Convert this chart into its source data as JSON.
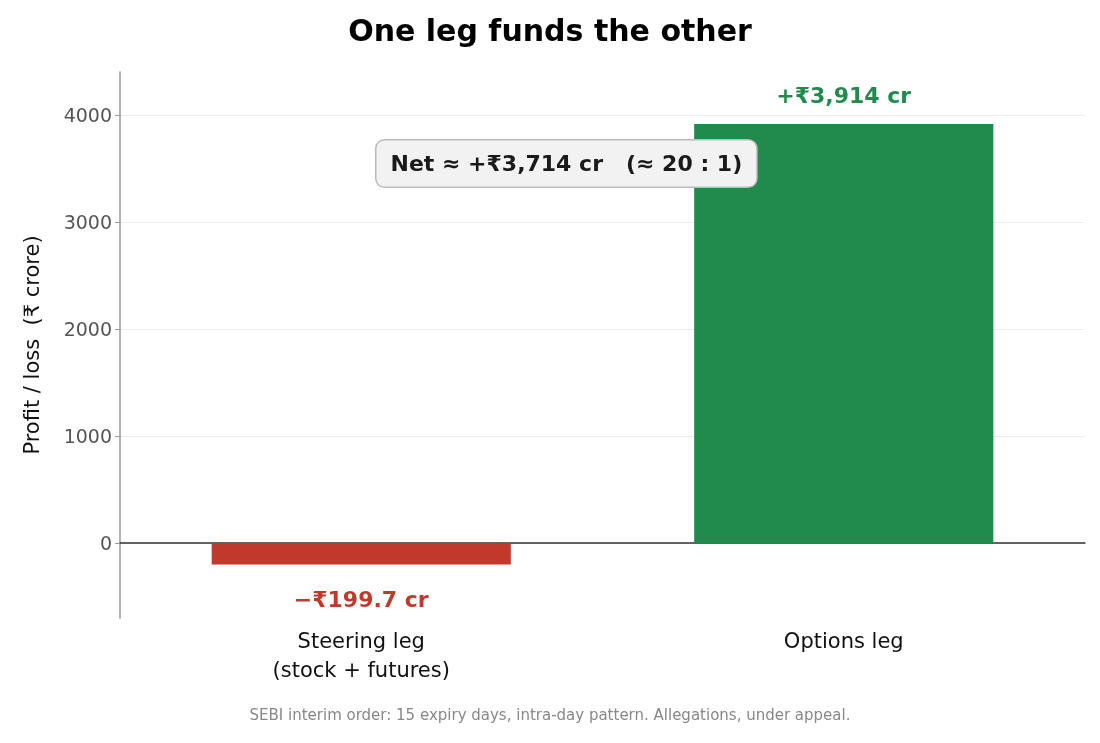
{
  "chart_data": {
    "type": "bar",
    "title": "One leg funds the other",
    "ylabel": "Profit / loss  (₹ crore)",
    "categories": [
      "Steering leg\n(stock + futures)",
      "Options leg"
    ],
    "values": [
      -199.7,
      3914
    ],
    "colors": [
      "#c0392b",
      "#218b4e"
    ],
    "value_labels": [
      "−₹199.7 cr",
      "+₹3,914 cr"
    ],
    "ylim": [
      -700,
      4400
    ],
    "yticks": [
      0,
      1000,
      2000,
      3000,
      4000
    ],
    "grid": "y",
    "annotations": [
      "Net ≈ +₹3,714 cr   (≈ 20 : 1)",
      "SEBI interim order: 15 expiry days, intra-day pattern. Allegations, under appeal."
    ]
  }
}
